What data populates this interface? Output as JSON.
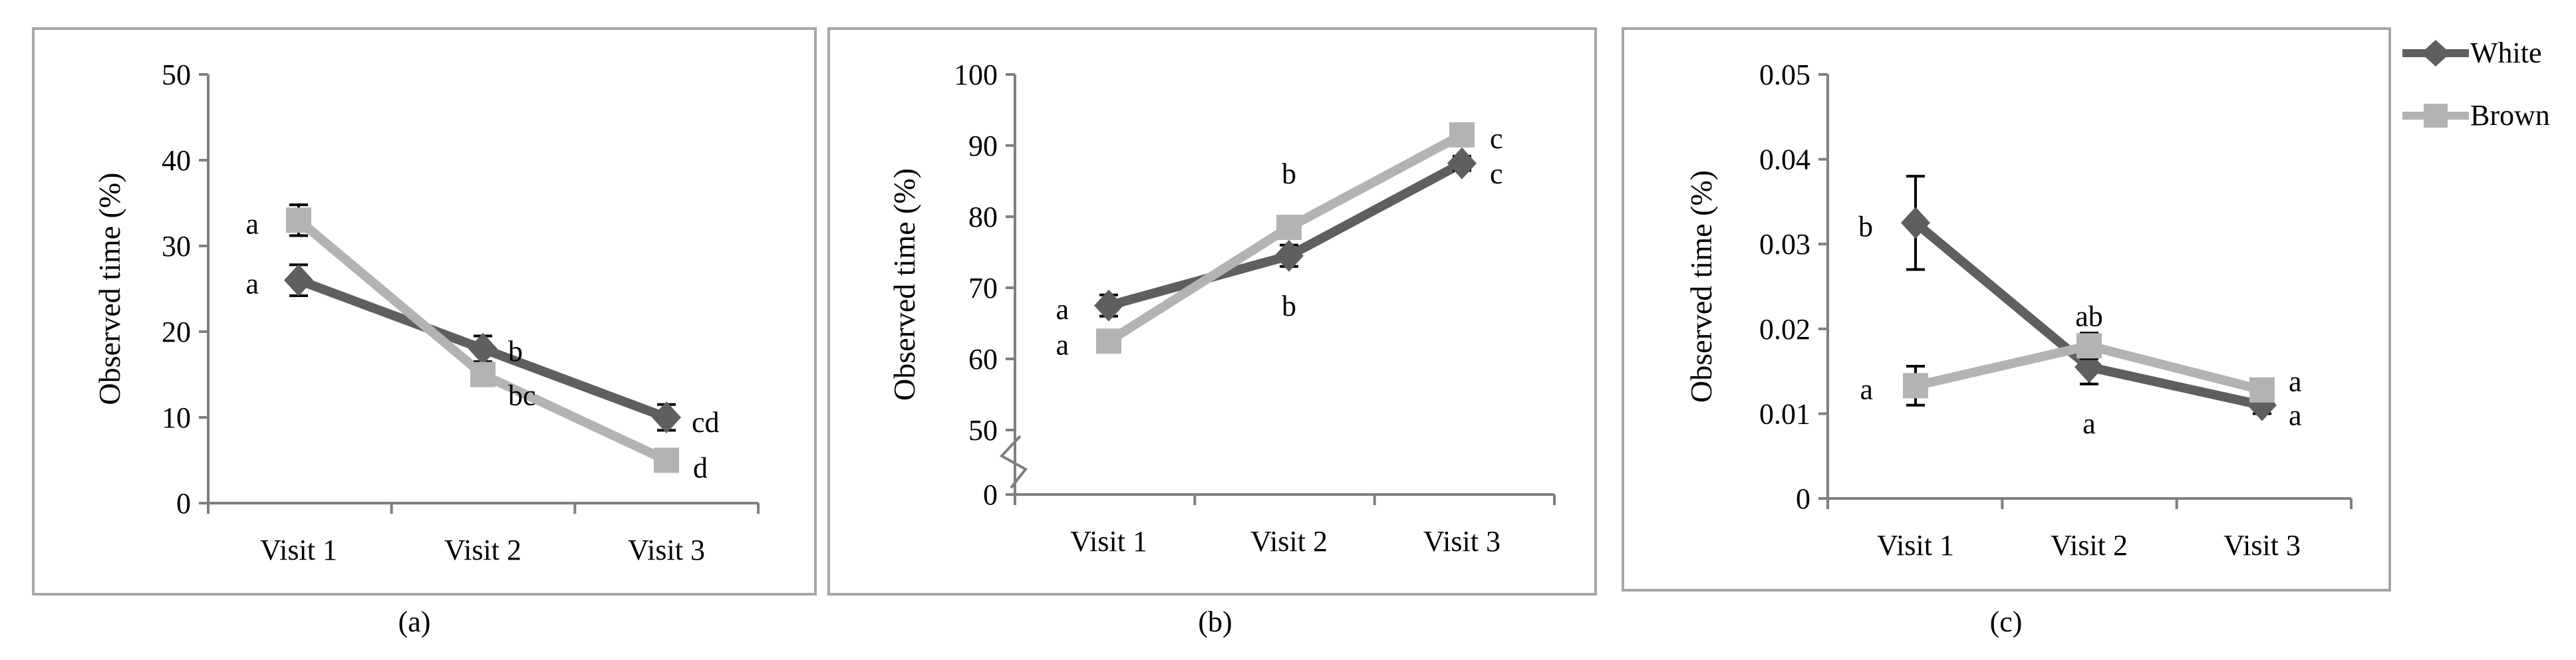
{
  "chart_data": [
    {
      "type": "line",
      "caption": "(a)",
      "ylabel": "Observed time (%)",
      "categories": [
        "Visit 1",
        "Visit 2",
        "Visit 3"
      ],
      "ylim": [
        0,
        50
      ],
      "yticks": [
        "0",
        "10",
        "20",
        "30",
        "40",
        "50"
      ],
      "series": [
        {
          "name": "White",
          "values": [
            26,
            18,
            10
          ],
          "errors": [
            1.8,
            1.5,
            1.5
          ],
          "letters": [
            "a",
            "b",
            "cd"
          ]
        },
        {
          "name": "Brown",
          "values": [
            33,
            15,
            5
          ],
          "errors": [
            1.8,
            1.2,
            1.0
          ],
          "letters": [
            "a",
            "bc",
            "d"
          ]
        }
      ]
    },
    {
      "type": "line",
      "caption": "(b)",
      "ylabel": "Observed time (%)",
      "categories": [
        "Visit 1",
        "Visit 2",
        "Visit 3"
      ],
      "ylim": [
        0,
        100
      ],
      "axis_break": true,
      "yticks": [
        "0",
        "50",
        "60",
        "70",
        "80",
        "90",
        "100"
      ],
      "series": [
        {
          "name": "White",
          "values": [
            67.5,
            74.5,
            87.5
          ],
          "errors": [
            1.5,
            1.5,
            1.0
          ],
          "letters": [
            "a",
            "b",
            "c"
          ]
        },
        {
          "name": "Brown",
          "values": [
            62.5,
            78.5,
            91.5
          ],
          "errors": [
            1.0,
            1.0,
            1.0
          ],
          "letters": [
            "a",
            "b",
            "c"
          ]
        }
      ]
    },
    {
      "type": "line",
      "caption": "(c)",
      "ylabel": "Observed  time (%)",
      "categories": [
        "Visit 1",
        "Visit 2",
        "Visit 3"
      ],
      "ylim": [
        0,
        0.05
      ],
      "yticks": [
        "0",
        "0.01",
        "0.02",
        "0.03",
        "0.04",
        "0.05"
      ],
      "series": [
        {
          "name": "White",
          "values": [
            0.0325,
            0.0155,
            0.011
          ],
          "errors": [
            0.0055,
            0.002,
            0.001
          ],
          "letters": [
            "b",
            "a",
            "a"
          ]
        },
        {
          "name": "Brown",
          "values": [
            0.0133,
            0.018,
            0.0128
          ],
          "errors": [
            0.0023,
            0.0015,
            0.001
          ],
          "letters": [
            "a",
            "ab",
            "a"
          ]
        }
      ]
    }
  ],
  "legend": {
    "position": "right",
    "items": [
      {
        "name": "White",
        "color": "#5f5f5f",
        "marker": "diamond"
      },
      {
        "name": "Brown",
        "color": "#b3b3b3",
        "marker": "square"
      }
    ]
  },
  "colors": {
    "white_series": "#5f5f5f",
    "brown_series": "#b3b3b3"
  }
}
